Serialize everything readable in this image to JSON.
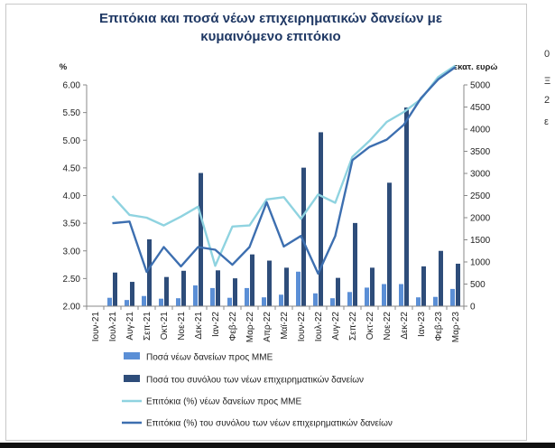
{
  "chart_data": {
    "type": "bar+line",
    "title_lines": [
      "Επιτόκια και ποσά νέων επιχειρηματικών δανείων με",
      "κυμαινόμενο επιτόκιο"
    ],
    "left_axis_unit": "%",
    "right_axis_unit": "εκατ. ευρώ",
    "categories": [
      "Ιουν-21",
      "Ιουλ-21",
      "Αυγ-21",
      "Σεπ-21",
      "Οκτ-21",
      "Νοε-21",
      "Δεκ-21",
      "Ιαν-22",
      "Φεβ-22",
      "Μαρ-22",
      "Απρ-22",
      "Μαϊ-22",
      "Ιουν-22",
      "Ιουλ-22",
      "Αυγ-22",
      "Σεπ-22",
      "Οκτ-22",
      "Νοε-22",
      "Δεκ-22",
      "Ιαν-23",
      "Φεβ-23",
      "Μαρ-23"
    ],
    "y_left": {
      "min": 2.0,
      "max": 6.0,
      "ticks": [
        "2.00",
        "2.50",
        "3.00",
        "3.50",
        "4.00",
        "4.50",
        "5.00",
        "5.50",
        "6.00"
      ]
    },
    "y_right": {
      "min": 0,
      "max": 5000,
      "ticks": [
        "0",
        "500",
        "1000",
        "1500",
        "2000",
        "2500",
        "3000",
        "3500",
        "4000",
        "4500",
        "5000"
      ]
    },
    "series": [
      {
        "name": "Ποσά νέων δανείων προς ΜΜΕ",
        "kind": "bar",
        "axis": "right",
        "color": "#5b8fd6",
        "values": [
          null,
          190,
          140,
          230,
          170,
          180,
          470,
          410,
          190,
          410,
          200,
          260,
          780,
          290,
          180,
          320,
          420,
          500,
          500,
          200,
          210,
          390
        ]
      },
      {
        "name": "Ποσά του συνόλου των νέων επιχειρηματικών δανείων",
        "kind": "bar",
        "axis": "right",
        "color": "#2e4d7a",
        "values": [
          null,
          760,
          550,
          1510,
          660,
          800,
          3010,
          810,
          630,
          1170,
          1030,
          870,
          3130,
          3930,
          640,
          1880,
          870,
          2790,
          4490,
          900,
          1250,
          960
        ]
      },
      {
        "name": "Επιτόκια (%) νέων δανείων προς ΜΜΕ",
        "kind": "line",
        "axis": "left",
        "color": "#8fd3e0",
        "values": [
          null,
          3.99,
          3.65,
          3.6,
          3.46,
          3.62,
          3.8,
          2.73,
          3.44,
          3.46,
          3.93,
          3.97,
          3.58,
          4.02,
          3.87,
          4.7,
          4.99,
          5.33,
          5.51,
          5.74,
          6.14,
          6.38
        ]
      },
      {
        "name": "Επιτόκια (%) του συνόλου των νέων επιχειρηματικών δανείων",
        "kind": "line",
        "axis": "left",
        "color": "#3d6fb0",
        "values": [
          null,
          3.5,
          3.53,
          2.62,
          3.07,
          2.72,
          3.07,
          3.02,
          2.75,
          3.07,
          3.88,
          3.08,
          3.27,
          2.59,
          3.27,
          4.64,
          4.88,
          5.01,
          5.28,
          5.76,
          6.1,
          6.32
        ]
      }
    ],
    "legend_position": "bottom",
    "grid": false
  },
  "edge_glyphs": [
    "0",
    "Ξ",
    "2",
    "ε"
  ]
}
